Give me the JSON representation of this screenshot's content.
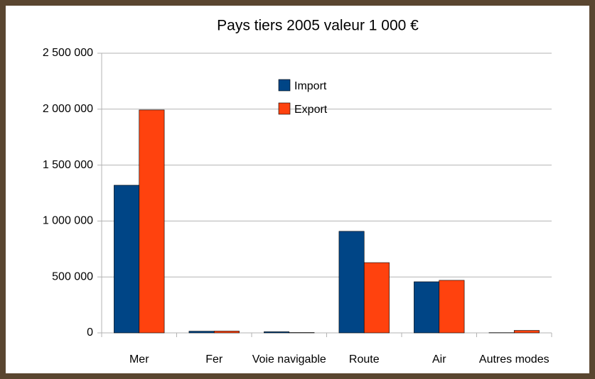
{
  "chart_data": {
    "type": "bar",
    "title": "Pays tiers 2005 valeur 1 000 €",
    "categories": [
      "Mer",
      "Fer",
      "Voie navigable",
      "Route",
      "Air",
      "Autres modes"
    ],
    "series": [
      {
        "name": "Import",
        "color": "#004586",
        "values": [
          1320000,
          15000,
          10000,
          908000,
          457000,
          2000
        ]
      },
      {
        "name": "Export",
        "color": "#ff420e",
        "values": [
          1993000,
          16000,
          3000,
          628000,
          470000,
          22000
        ]
      }
    ],
    "ylim": [
      0,
      2500000
    ],
    "yticks": [
      0,
      {
        "value": 500000,
        "label": "500 000"
      },
      {
        "value": 1000000,
        "label": "1 000 000"
      },
      {
        "value": 1500000,
        "label": "1 500 000"
      },
      {
        "value": 2000000,
        "label": "2 000 000"
      },
      {
        "value": 2500000,
        "label": "2 500 000"
      }
    ],
    "grid": true
  }
}
